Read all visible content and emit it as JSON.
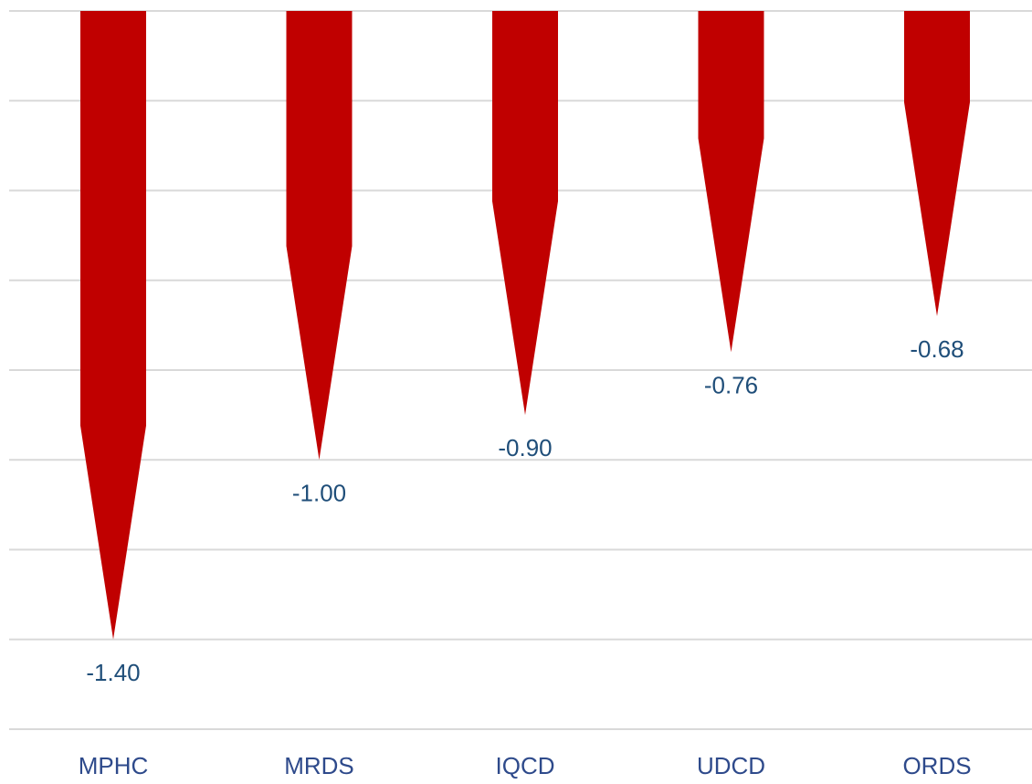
{
  "chart_data": {
    "type": "bar",
    "categories": [
      "MPHC",
      "MRDS",
      "IQCD",
      "UDCD",
      "ORDS"
    ],
    "values": [
      -1.4,
      -1.0,
      -0.9,
      -0.76,
      -0.68
    ],
    "labels": [
      "-1.40",
      "-1.00",
      "-0.90",
      "-0.76",
      "-0.68"
    ],
    "ylim": [
      -1.6,
      0
    ],
    "grid": true,
    "colors": {
      "bar": "#c00000",
      "gridline": "#d9d9d9",
      "data_label": "#1f4e79",
      "category_label": "#2e4a8b"
    }
  }
}
